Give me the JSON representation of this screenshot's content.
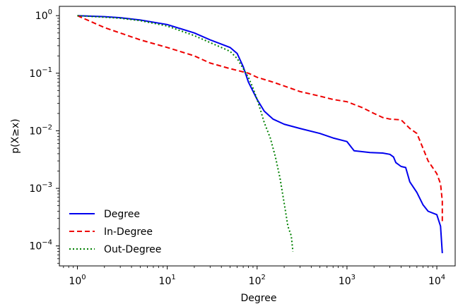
{
  "chart_data": {
    "type": "line",
    "xlabel": "Degree",
    "ylabel": "p(X≥x)",
    "xscale": "log",
    "yscale": "log",
    "xlim": [
      0.63,
      16000
    ],
    "ylim": [
      4.5e-05,
      1.45
    ],
    "x_ticks": [
      {
        "value": 1,
        "base": "10",
        "exp": "0"
      },
      {
        "value": 10,
        "base": "10",
        "exp": "1"
      },
      {
        "value": 100,
        "base": "10",
        "exp": "2"
      },
      {
        "value": 1000,
        "base": "10",
        "exp": "3"
      },
      {
        "value": 10000,
        "base": "10",
        "exp": "4"
      }
    ],
    "y_ticks": [
      {
        "value": 1,
        "base": "10",
        "exp": "0"
      },
      {
        "value": 0.1,
        "base": "10",
        "exp": "−1"
      },
      {
        "value": 0.01,
        "base": "10",
        "exp": "−2"
      },
      {
        "value": 0.001,
        "base": "10",
        "exp": "−3"
      },
      {
        "value": 0.0001,
        "base": "10",
        "exp": "−4"
      }
    ],
    "grid": false,
    "legend_position": "lower-left",
    "series": [
      {
        "name": "Degree",
        "color": "#0000ee",
        "dash": "solid",
        "x": [
          1,
          2,
          3,
          5,
          10,
          20,
          30,
          40,
          50,
          60,
          70,
          80,
          100,
          120,
          150,
          200,
          300,
          500,
          700,
          1000,
          1200,
          1800,
          2500,
          3000,
          3300,
          3500,
          4000,
          4500,
          5000,
          6000,
          7000,
          8000,
          10000,
          11000,
          11500
        ],
        "y": [
          1.0,
          0.96,
          0.92,
          0.84,
          0.7,
          0.5,
          0.38,
          0.32,
          0.28,
          0.22,
          0.13,
          0.07,
          0.035,
          0.022,
          0.016,
          0.013,
          0.011,
          0.009,
          0.0075,
          0.0065,
          0.0045,
          0.0042,
          0.0041,
          0.0039,
          0.0035,
          0.0028,
          0.0024,
          0.0023,
          0.0013,
          0.00085,
          0.00052,
          0.0004,
          0.00035,
          0.00022,
          7.5e-05
        ]
      },
      {
        "name": "In-Degree",
        "color": "#ee0000",
        "dash": "dashed",
        "x": [
          1,
          2,
          5,
          10,
          20,
          30,
          50,
          80,
          100,
          150,
          200,
          300,
          500,
          700,
          1000,
          1500,
          2000,
          2500,
          3000,
          4000,
          5000,
          6000,
          7000,
          8000,
          10000,
          11000,
          11500,
          11500
        ],
        "y": [
          1.0,
          0.62,
          0.38,
          0.28,
          0.2,
          0.15,
          0.12,
          0.1,
          0.085,
          0.07,
          0.06,
          0.048,
          0.04,
          0.035,
          0.032,
          0.025,
          0.02,
          0.017,
          0.016,
          0.0155,
          0.011,
          0.009,
          0.005,
          0.003,
          0.0018,
          0.0012,
          0.0006,
          0.00027
        ]
      },
      {
        "name": "Out-Degree",
        "color": "#008000",
        "dash": "dotted",
        "x": [
          1,
          2,
          3,
          5,
          10,
          20,
          30,
          40,
          50,
          60,
          70,
          80,
          90,
          100,
          110,
          120,
          140,
          160,
          180,
          190,
          200,
          210,
          220,
          240,
          250
        ],
        "y": [
          1.0,
          0.94,
          0.9,
          0.82,
          0.66,
          0.45,
          0.34,
          0.28,
          0.24,
          0.18,
          0.12,
          0.085,
          0.055,
          0.035,
          0.022,
          0.014,
          0.0075,
          0.0035,
          0.0015,
          0.0009,
          0.00055,
          0.00035,
          0.00022,
          0.00015,
          8e-05
        ]
      }
    ]
  }
}
